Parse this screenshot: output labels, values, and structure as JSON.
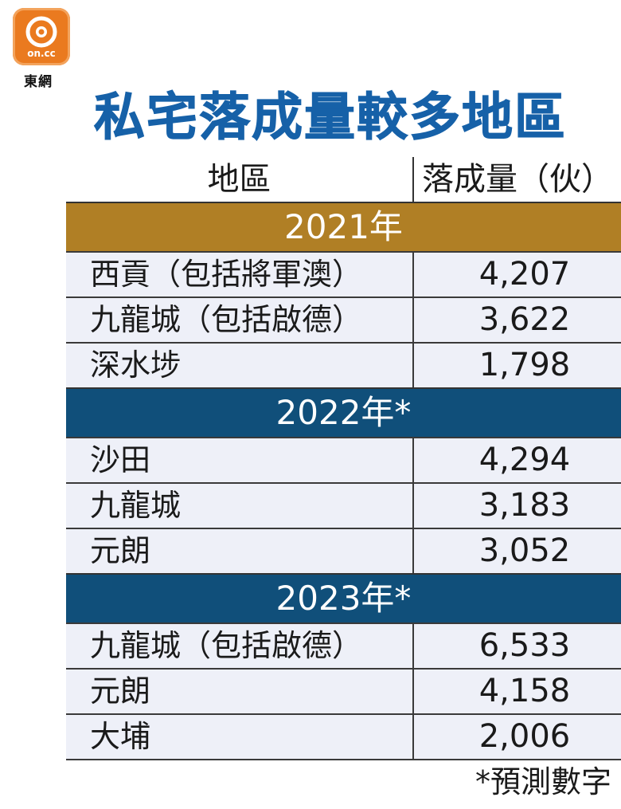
{
  "brand": {
    "logo_text": "on.cc",
    "name": "東網"
  },
  "title": "私宅落成量較多地區",
  "colors": {
    "title": "#1661a8",
    "band_2021": "#b07f25",
    "band_forecast": "#104f7a",
    "row_background": "#eef0f8",
    "logo": "#ea7a1f"
  },
  "chart_data": {
    "type": "table",
    "title": "私宅落成量較多地區",
    "columns": [
      "地區",
      "落成量（伙）"
    ],
    "groups": [
      {
        "label": "2021年",
        "rows": [
          {
            "district": "西貢（包括將軍澳）",
            "units": "4,207"
          },
          {
            "district": "九龍城（包括啟德）",
            "units": "3,622"
          },
          {
            "district": "深水埗",
            "units": "1,798"
          }
        ]
      },
      {
        "label": "2022年*",
        "rows": [
          {
            "district": "沙田",
            "units": "4,294"
          },
          {
            "district": "九龍城",
            "units": "3,183"
          },
          {
            "district": "元朗",
            "units": "3,052"
          }
        ]
      },
      {
        "label": "2023年*",
        "rows": [
          {
            "district": "九龍城（包括啟德）",
            "units": "6,533"
          },
          {
            "district": "元朗",
            "units": "4,158"
          },
          {
            "district": "大埔",
            "units": "2,006"
          }
        ]
      }
    ],
    "footnote": "*預測數字"
  }
}
